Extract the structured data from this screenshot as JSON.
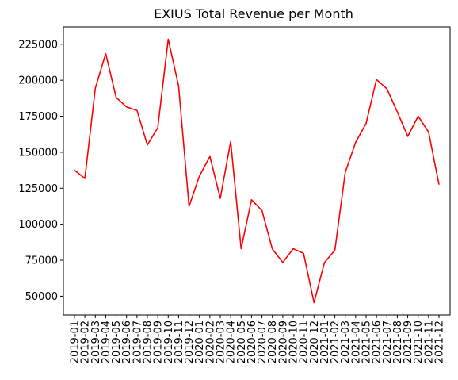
{
  "chart_data": {
    "type": "line",
    "title": "EXIUS Total Revenue per Month",
    "xlabel": "",
    "ylabel": "",
    "grid": false,
    "legend": "none",
    "color": "#ff0000",
    "ylim": [
      37000,
      237000
    ],
    "yticks": [
      50000,
      75000,
      100000,
      125000,
      150000,
      175000,
      200000,
      225000
    ],
    "x": [
      "2019-01",
      "2019-02",
      "2019-03",
      "2019-04",
      "2019-05",
      "2019-06",
      "2019-07",
      "2019-08",
      "2019-09",
      "2019-10",
      "2019-11",
      "2019-12",
      "2020-01",
      "2020-02",
      "2020-03",
      "2020-04",
      "2020-05",
      "2020-06",
      "2020-07",
      "2020-08",
      "2020-09",
      "2020-10",
      "2020-11",
      "2020-12",
      "2021-01",
      "2021-02",
      "2021-03",
      "2021-04",
      "2021-05",
      "2021-06",
      "2021-07",
      "2021-08",
      "2021-09",
      "2021-10",
      "2021-11",
      "2021-12"
    ],
    "values": [
      137500,
      131800,
      194500,
      218500,
      188000,
      181500,
      179000,
      155000,
      167000,
      228500,
      196000,
      112500,
      133500,
      147000,
      118000,
      157500,
      83000,
      117000,
      109500,
      82800,
      73500,
      83000,
      79800,
      45500,
      73300,
      82000,
      136000,
      157000,
      170000,
      200500,
      194000,
      178000,
      161000,
      175000,
      164000,
      127500
    ]
  }
}
